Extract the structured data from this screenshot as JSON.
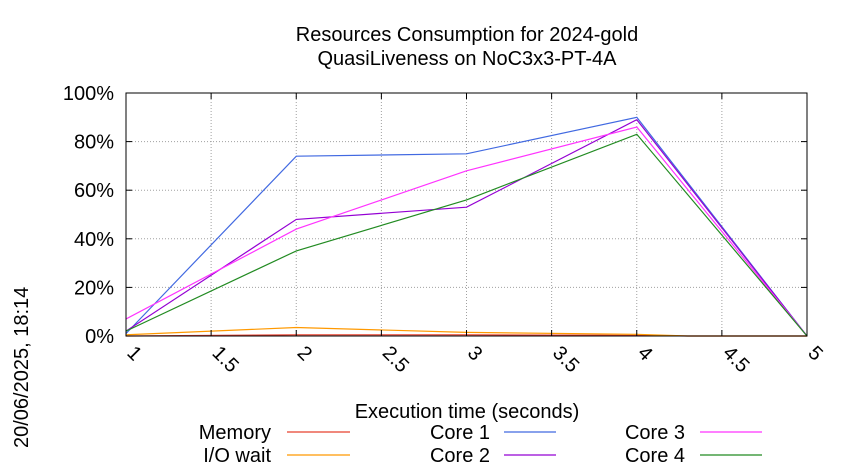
{
  "side_label": "20/06/2025, 18:14",
  "chart_data": {
    "type": "line",
    "title": [
      "Resources Consumption for 2024-gold",
      "QuasiLiveness on NoC3x3-PT-4A"
    ],
    "xlabel": "Execution time (seconds)",
    "ylabel": "",
    "xlim": [
      1,
      5
    ],
    "ylim": [
      0,
      100
    ],
    "x_ticks": [
      "1",
      "1.5",
      "2",
      "2.5",
      "3",
      "3.5",
      "4",
      "4.5",
      "5"
    ],
    "y_ticks": [
      "0%",
      "20%",
      "40%",
      "60%",
      "80%",
      "100%"
    ],
    "grid": true,
    "legend": "bottom",
    "series": [
      {
        "name": "Memory",
        "color": "#e8402f",
        "x": [
          1,
          2,
          3,
          4,
          4.3,
          5
        ],
        "values": [
          0,
          0.5,
          0.5,
          0.3,
          0,
          0
        ]
      },
      {
        "name": "I/O wait",
        "color": "#ff9900",
        "x": [
          1,
          2,
          3,
          4,
          4.3,
          5
        ],
        "values": [
          0.5,
          3.5,
          1.5,
          0.7,
          0,
          0
        ]
      },
      {
        "name": "Core 1",
        "color": "#4169e1",
        "x": [
          1,
          2,
          3,
          4,
          5
        ],
        "values": [
          1,
          74,
          75,
          90,
          0
        ]
      },
      {
        "name": "Core 2",
        "color": "#9400d3",
        "x": [
          1,
          2,
          3,
          4,
          5
        ],
        "values": [
          2,
          48,
          53,
          89,
          0
        ]
      },
      {
        "name": "Core 3",
        "color": "#ff33ff",
        "x": [
          1,
          2,
          3,
          4,
          5
        ],
        "values": [
          7,
          44,
          68,
          86,
          0
        ]
      },
      {
        "name": "Core 4",
        "color": "#228b22",
        "x": [
          1,
          2,
          3,
          4,
          5
        ],
        "values": [
          2,
          35,
          56,
          83,
          0
        ]
      }
    ]
  }
}
